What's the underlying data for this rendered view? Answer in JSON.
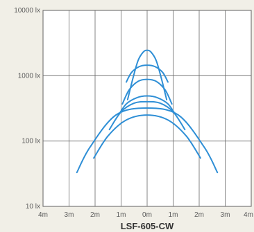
{
  "chart_data": {
    "type": "line",
    "title": "LSF-605-CW",
    "xlabel": "",
    "ylabel": "",
    "x_scale": "linear",
    "y_scale": "log",
    "xlim": [
      -4,
      4
    ],
    "ylim": [
      10,
      10000
    ],
    "x_ticks": [
      {
        "value": -4,
        "label": "4m"
      },
      {
        "value": -3,
        "label": "3m"
      },
      {
        "value": -2,
        "label": "2m"
      },
      {
        "value": -1,
        "label": "1m"
      },
      {
        "value": 0,
        "label": "0m"
      },
      {
        "value": 1,
        "label": "1m"
      },
      {
        "value": 2,
        "label": "2m"
      },
      {
        "value": 3,
        "label": "3m"
      },
      {
        "value": 4,
        "label": "4m"
      }
    ],
    "y_ticks": [
      {
        "value": 10,
        "label": "10 lx"
      },
      {
        "value": 100,
        "label": "100 lx"
      },
      {
        "value": 1000,
        "label": "1000 lx"
      },
      {
        "value": 10000,
        "label": "10000 lx"
      }
    ],
    "grid": true,
    "line_color": "#2f8fd6",
    "series": [
      {
        "x": [
          -0.75,
          -0.55,
          -0.35,
          -0.15,
          0,
          0.15,
          0.35,
          0.55,
          0.75
        ],
        "y": [
          430,
          900,
          1700,
          2300,
          2450,
          2300,
          1700,
          900,
          430
        ]
      },
      {
        "x": [
          -0.8,
          -0.6,
          -0.3,
          0,
          0.3,
          0.6,
          0.8
        ],
        "y": [
          800,
          1120,
          1380,
          1450,
          1380,
          1120,
          800
        ]
      },
      {
        "x": [
          -0.95,
          -0.7,
          -0.35,
          0,
          0.35,
          0.7,
          0.95
        ],
        "y": [
          370,
          600,
          820,
          880,
          820,
          600,
          370
        ]
      },
      {
        "x": [
          -1.1,
          -0.8,
          -0.4,
          0,
          0.4,
          0.8,
          1.1
        ],
        "y": [
          250,
          370,
          460,
          490,
          460,
          370,
          250
        ]
      },
      {
        "x": [
          -1.45,
          -1.0,
          -0.5,
          0,
          0.5,
          1.0,
          1.45
        ],
        "y": [
          150,
          280,
          380,
          400,
          380,
          280,
          150
        ]
      },
      {
        "x": [
          -2.05,
          -1.5,
          -0.8,
          0,
          0.8,
          1.5,
          2.05
        ],
        "y": [
          55,
          120,
          210,
          250,
          210,
          120,
          55
        ]
      },
      {
        "x": [
          -2.7,
          -2.2,
          -1.2,
          0,
          1.2,
          2.2,
          2.7
        ],
        "y": [
          33,
          80,
          250,
          320,
          250,
          80,
          33
        ]
      }
    ]
  }
}
